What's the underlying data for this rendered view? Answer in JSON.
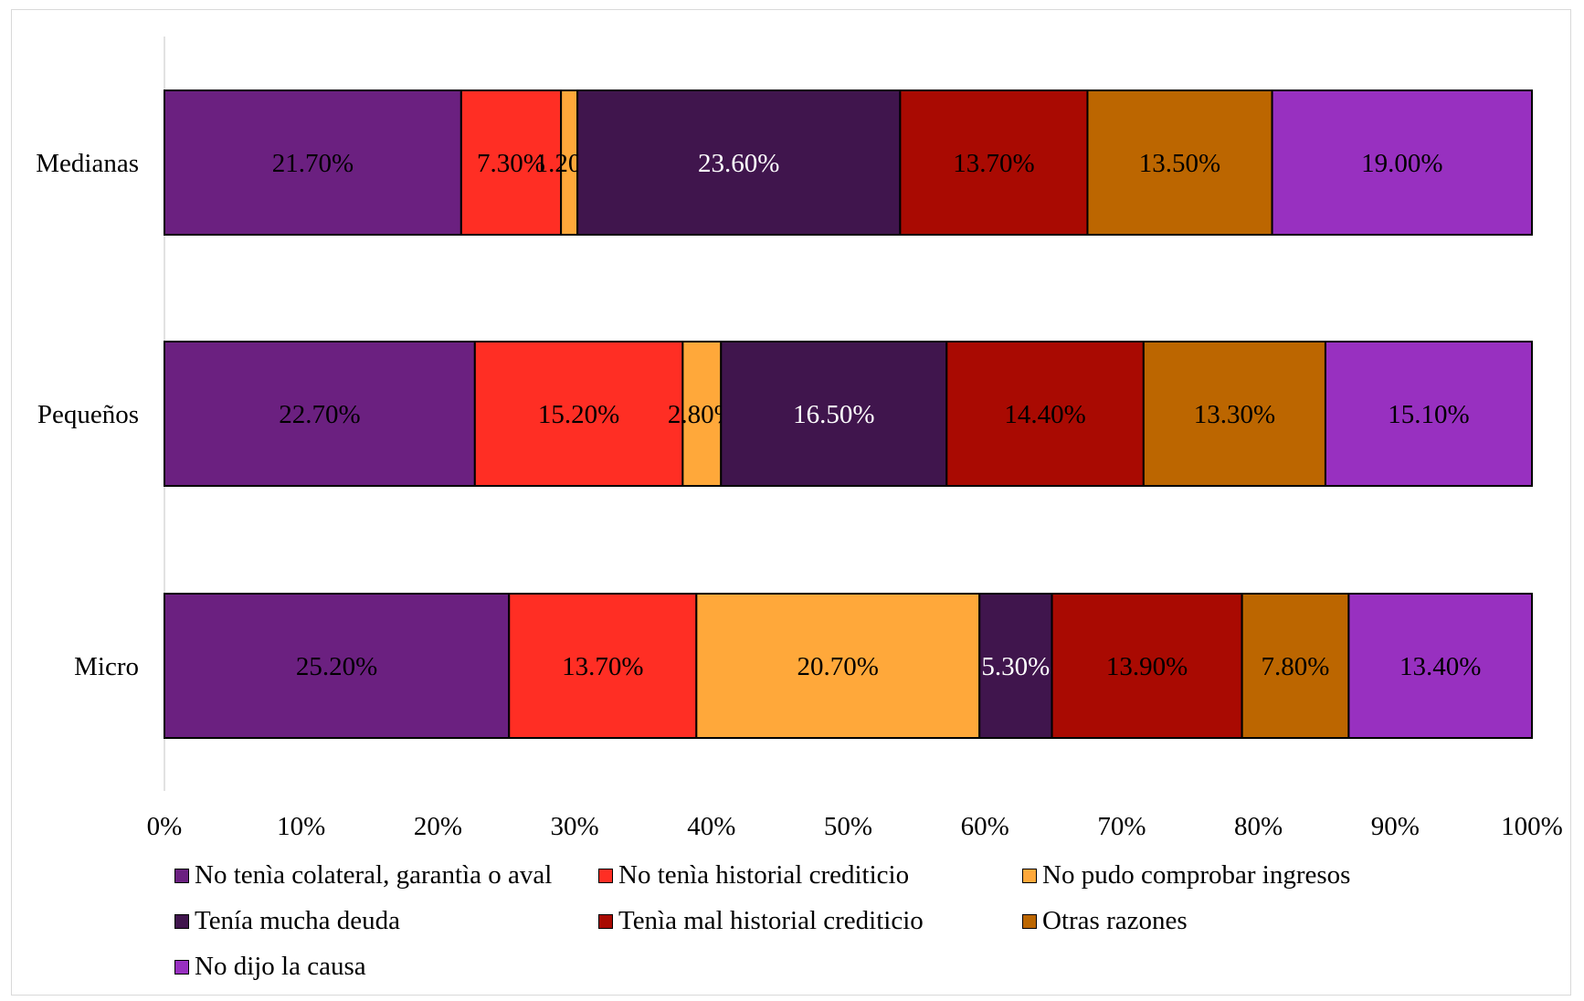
{
  "chart_data": {
    "type": "bar",
    "orientation": "horizontal",
    "stacked": true,
    "percent_stacked": true,
    "categories": [
      "Medianas",
      "Pequeños",
      "Micro"
    ],
    "series": [
      {
        "name": "No tenìa colateral, garantìa o aval",
        "color": "#6B2080",
        "label_color": "#000000",
        "values": [
          21.7,
          22.7,
          25.2
        ],
        "labels": [
          "21.70%",
          "22.70%",
          "25.20%"
        ]
      },
      {
        "name": "No tenìa historial crediticio",
        "color": "#FF2E24",
        "label_color": "#000000",
        "values": [
          7.3,
          15.2,
          13.7
        ],
        "labels": [
          "7.30%",
          "15.20%",
          "13.70%"
        ]
      },
      {
        "name": "No pudo comprobar ingresos",
        "color": "#FFA83A",
        "label_color": "#000000",
        "values": [
          1.2,
          2.8,
          20.7
        ],
        "labels": [
          "1.20%",
          "2.80%",
          "20.70%"
        ]
      },
      {
        "name": "Tenía mucha deuda",
        "color": "#40154D",
        "label_color": "#ffffff",
        "values": [
          23.6,
          16.5,
          5.3
        ],
        "labels": [
          "23.60%",
          "16.50%",
          "5.30%"
        ]
      },
      {
        "name": "Tenìa mal historial crediticio",
        "color": "#A90A02",
        "label_color": "#000000",
        "values": [
          13.7,
          14.4,
          13.9
        ],
        "labels": [
          "13.70%",
          "14.40%",
          "13.90%"
        ]
      },
      {
        "name": "Otras razones",
        "color": "#BC6600",
        "label_color": "#000000",
        "values": [
          13.5,
          13.3,
          7.8
        ],
        "labels": [
          "13.50%",
          "13.30%",
          "7.80%"
        ]
      },
      {
        "name": "No dijo la causa",
        "color": "#9830C0",
        "label_color": "#000000",
        "values": [
          19.0,
          15.1,
          13.4
        ],
        "labels": [
          "19.00%",
          "15.10%",
          "13.40%"
        ]
      }
    ],
    "x_ticks": [
      "0%",
      "10%",
      "20%",
      "30%",
      "40%",
      "50%",
      "60%",
      "70%",
      "80%",
      "90%",
      "100%"
    ],
    "xlim": [
      0,
      100
    ],
    "title": "",
    "xlabel": "",
    "ylabel": "",
    "grid": false,
    "legend": "bottom"
  }
}
